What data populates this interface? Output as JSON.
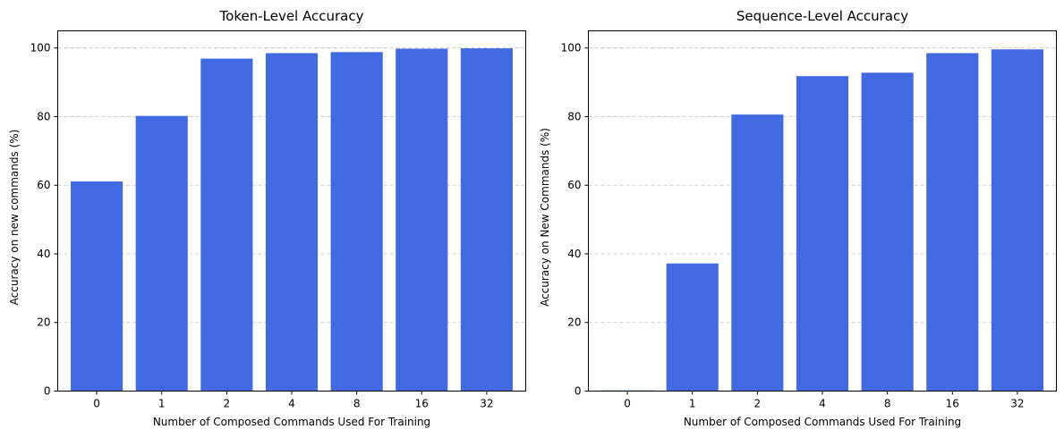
{
  "chart_data": [
    {
      "type": "bar",
      "title": "Token-Level Accuracy",
      "xlabel": "Number of Composed Commands Used For Training",
      "ylabel": "Accuracy on new commands (%)",
      "categories": [
        "0",
        "1",
        "2",
        "4",
        "8",
        "16",
        "32"
      ],
      "values": [
        61.1,
        80.2,
        96.9,
        98.5,
        98.8,
        99.8,
        99.9
      ],
      "ylim": [
        0,
        105
      ],
      "yticks": [
        "0",
        "20",
        "40",
        "60",
        "80",
        "100"
      ],
      "grid": "y-dashed",
      "bar_color": "#4169E1"
    },
    {
      "type": "bar",
      "title": "Sequence-Level Accuracy",
      "xlabel": "Number of Composed Commands Used For Training",
      "ylabel": "Accuracy on New Commands (%)",
      "categories": [
        "0",
        "1",
        "2",
        "4",
        "8",
        "16",
        "32"
      ],
      "values": [
        0.2,
        37.2,
        80.6,
        91.8,
        92.8,
        98.5,
        99.6
      ],
      "ylim": [
        0,
        105
      ],
      "yticks": [
        "0",
        "20",
        "40",
        "60",
        "80",
        "100"
      ],
      "grid": "y-dashed",
      "bar_color": "#4169E1"
    }
  ]
}
